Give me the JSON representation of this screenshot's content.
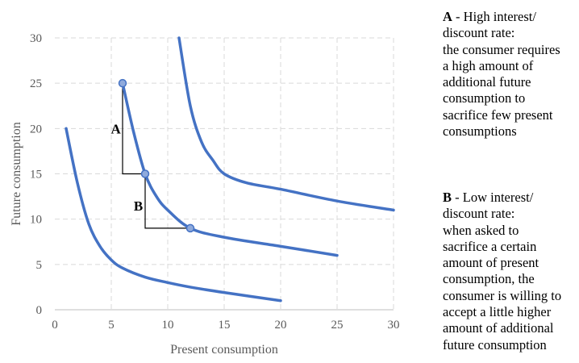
{
  "chart_data": {
    "type": "line",
    "title": "",
    "xlabel": "Present consumption",
    "ylabel": "Future consumption",
    "xlim": [
      0,
      30
    ],
    "ylim": [
      0,
      30
    ],
    "xticks": [
      "0",
      "5",
      "10",
      "15",
      "20",
      "25",
      "30"
    ],
    "yticks": [
      "0",
      "5",
      "10",
      "15",
      "20",
      "25",
      "30"
    ],
    "grid": true,
    "series": [
      {
        "x": [
          1,
          2,
          3,
          4,
          5,
          6,
          8,
          10,
          12,
          15,
          20
        ],
        "y": [
          20,
          14,
          9.5,
          7.0,
          5.5,
          4.6,
          3.6,
          3.0,
          2.5,
          1.9,
          1.0
        ]
      },
      {
        "x": [
          6,
          7,
          8,
          9,
          10,
          12,
          15,
          20,
          25
        ],
        "y": [
          25,
          19.5,
          15,
          12.5,
          11,
          9,
          8.0,
          7.0,
          6.0
        ]
      },
      {
        "x": [
          11,
          12,
          13,
          14,
          15,
          17,
          20,
          25,
          30
        ],
        "y": [
          30,
          22.5,
          18.5,
          16.5,
          15,
          14,
          13.3,
          12,
          11
        ]
      }
    ],
    "markers": [
      {
        "x": 6,
        "y": 25
      },
      {
        "x": 8,
        "y": 15
      },
      {
        "x": 12,
        "y": 9
      }
    ],
    "steps": [
      {
        "label": "A",
        "vertical_x": 6,
        "from_y": 25,
        "to_y": 15,
        "horizontal_to_x": 8,
        "label_at": [
          5.4,
          20
        ]
      },
      {
        "label": "B",
        "vertical_x": 8,
        "from_y": 15,
        "to_y": 9,
        "horizontal_to_x": 12,
        "label_at": [
          7.4,
          11.5
        ]
      }
    ],
    "colors": {
      "curve": "#4472c4",
      "marker_fill": "#8faadc",
      "grid": "#d9d9d9",
      "step": "#000000"
    }
  },
  "notes": {
    "a": {
      "key": "A",
      "lines": [
        " - High interest/",
        "discount rate:",
        "the consumer requires",
        "a high amount of",
        "additional future",
        "consumption to",
        "sacrifice few present",
        "consumptions"
      ]
    },
    "b": {
      "key": "B",
      "lines": [
        " - Low interest/",
        "discount rate:",
        "when asked to",
        "sacrifice a certain",
        "amount of present",
        "consumption, the",
        "consumer is willing to",
        "accept a little higher",
        "amount of additional",
        "future consumption"
      ]
    }
  }
}
